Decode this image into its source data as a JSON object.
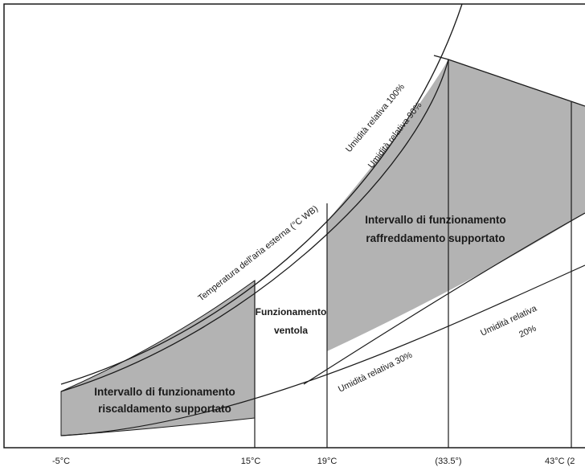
{
  "curves": {
    "rh100": "Umidità relativa 100%",
    "rh90": "Umidità relativa 90%",
    "outdoor_temp": "Temperatura dell'aria esterna (°C WB)",
    "rh30": "Umidità relativa 30%",
    "rh20_line1": "Umidità relativa",
    "rh20_line2": "20%"
  },
  "regions": {
    "cooling_line1": "Intervallo di funzionamento",
    "cooling_line2": "raffreddamento supportato",
    "fan_line1": "Funzionamento",
    "fan_line2": "ventola",
    "heating_line1": "Intervallo di funzionamento",
    "heating_line2": "riscaldamento supportato"
  },
  "x_ticks": [
    "-5°C",
    "15°C",
    "19°C",
    "(33.5°)",
    "43°C (2"
  ],
  "colors": {
    "shade": "#b3b3b3",
    "line": "#1a1a1a",
    "background": "#ffffff"
  }
}
